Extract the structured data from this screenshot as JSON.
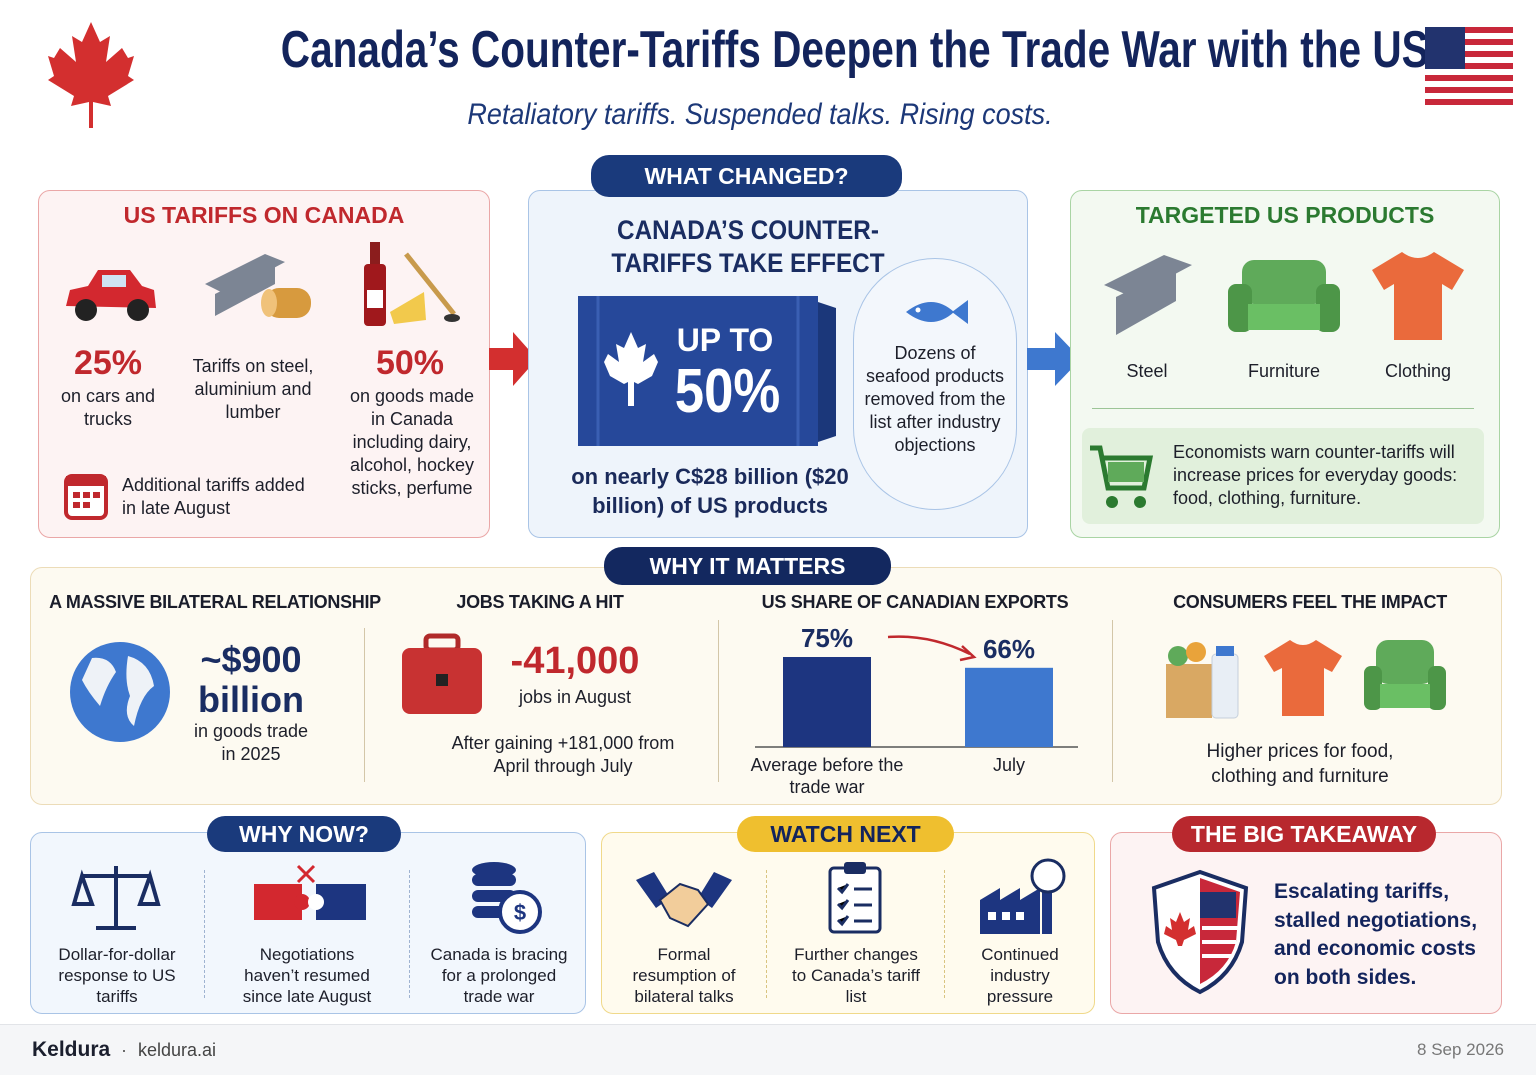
{
  "header": {
    "title": "Canada’s Counter-Tariffs Deepen the Trade War with the US",
    "subtitle": "Retaliatory tariffs. Suspended talks. Rising costs."
  },
  "us_tariffs": {
    "title": "US TARIFFS ON CANADA",
    "cars": {
      "rate": "25%",
      "text": "on cars and trucks"
    },
    "metals": {
      "text": "Tariffs on steel, aluminium and lumber"
    },
    "goods": {
      "rate": "50%",
      "text": "on goods made in Canada including dairy, alcohol, hockey sticks, perfume"
    },
    "note": "Additional tariffs added in late August"
  },
  "what_changed": {
    "badge": "WHAT CHANGED?",
    "title": "CANADA’S COUNTER-TARIFFS TAKE EFFECT",
    "up_to": "UP TO",
    "rate": "50%",
    "scope": "on nearly C$28 billion ($20 billion) of US products",
    "seafood": "Dozens of seafood products removed from the list after industry objections"
  },
  "targeted": {
    "title": "TARGETED US PRODUCTS",
    "products": [
      "Steel",
      "Furniture",
      "Clothing"
    ],
    "note": "Economists warn counter-tariffs will increase prices for everyday goods: food, clothing, furniture."
  },
  "why_matters": {
    "badge": "WHY IT MATTERS",
    "relationship": {
      "title": "A MASSIVE BILATERAL RELATIONSHIP",
      "value": "~$900 billion",
      "text": "in goods trade in 2025"
    },
    "jobs": {
      "title": "JOBS TAKING A HIT",
      "value": "-41,000",
      "text": "jobs in August",
      "note": "After gaining +181,000 from April through July"
    },
    "exports": {
      "title": "US SHARE OF CANADIAN EXPORTS",
      "chart": {
        "type": "bar",
        "categories": [
          "Average before the trade war",
          "July"
        ],
        "values": [
          75,
          66
        ],
        "value_labels": [
          "75%",
          "66%"
        ],
        "colors": [
          "#1d3580",
          "#3e78cf"
        ]
      }
    },
    "consumers": {
      "title": "CONSUMERS FEEL THE IMPACT",
      "text": "Higher prices for food, clothing and furniture"
    }
  },
  "why_now": {
    "badge": "WHY NOW?",
    "items": [
      "Dollar-for-dollar response to US tariffs",
      "Negotiations haven’t resumed since late August",
      "Canada is bracing for a prolonged trade war"
    ]
  },
  "watch_next": {
    "badge": "WATCH NEXT",
    "items": [
      "Formal resumption of bilateral talks",
      "Further changes to Canada’s tariff list",
      "Continued industry pressure"
    ]
  },
  "takeaway": {
    "badge": "THE BIG TAKEAWAY",
    "text": "Escalating tariffs, stalled negotiations, and economic costs on both sides."
  },
  "footer": {
    "brand": "Keldura",
    "site": "keldura.ai",
    "date": "8 Sep 2026"
  }
}
